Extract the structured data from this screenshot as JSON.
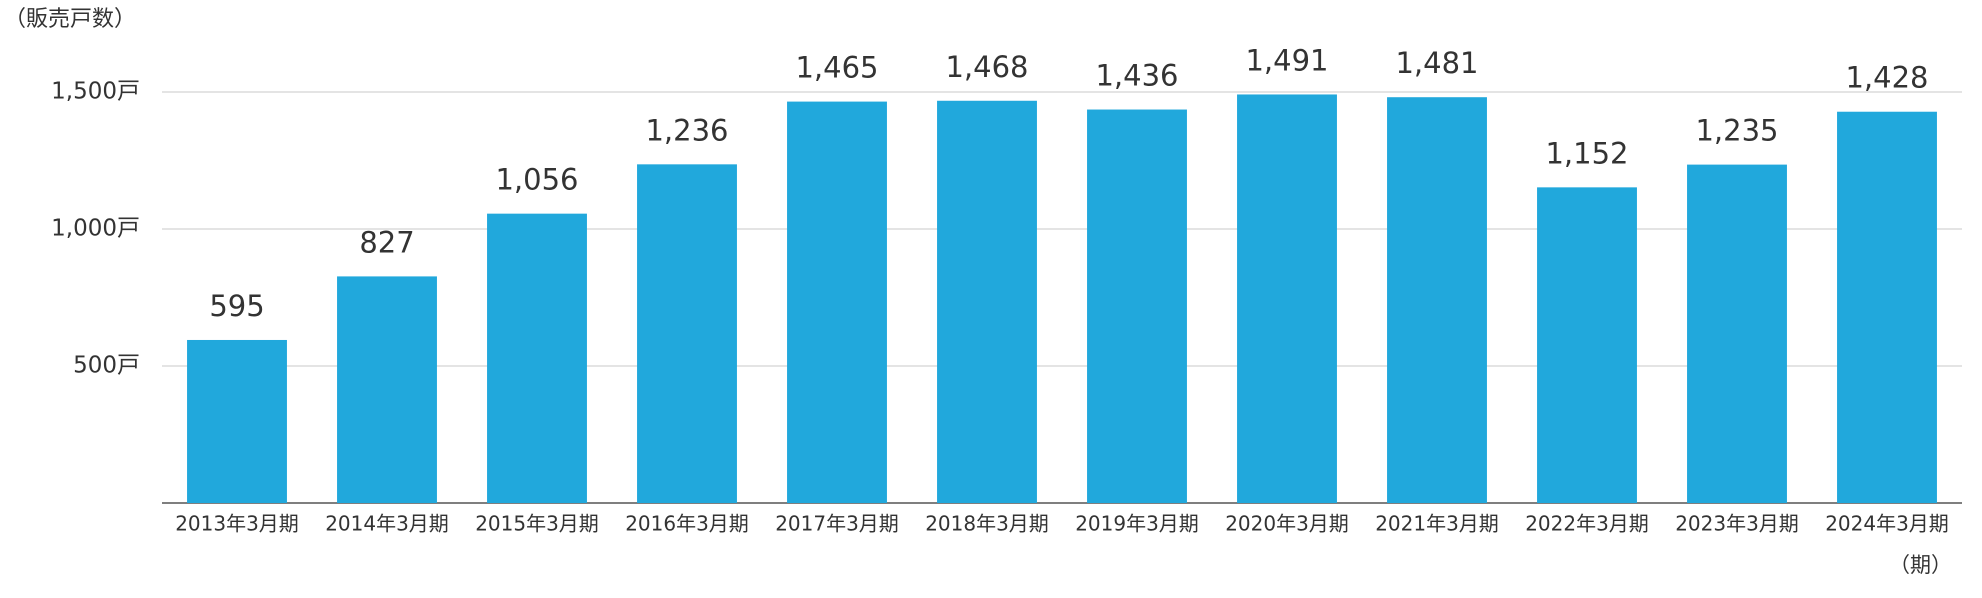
{
  "chart_data": {
    "type": "bar",
    "y_label": "（販売戸数）",
    "x_label": "（期）",
    "categories": [
      "2013年3月期",
      "2014年3月期",
      "2015年3月期",
      "2016年3月期",
      "2017年3月期",
      "2018年3月期",
      "2019年3月期",
      "2020年3月期",
      "2021年3月期",
      "2022年3月期",
      "2023年3月期",
      "2024年3月期"
    ],
    "values": [
      595,
      827,
      1056,
      1236,
      1465,
      1468,
      1436,
      1491,
      1481,
      1152,
      1235,
      1428
    ],
    "value_labels": [
      "595",
      "827",
      "1,056",
      "1,236",
      "1,465",
      "1,468",
      "1,436",
      "1,491",
      "1,481",
      "1,152",
      "1,235",
      "1,428"
    ],
    "color": "#21a8dc",
    "ylim": [
      0,
      1500
    ],
    "yticks": [
      {
        "value": 500,
        "label": "500戸"
      },
      {
        "value": 1000,
        "label": "1,000戸"
      },
      {
        "value": 1500,
        "label": "1,500戸"
      }
    ],
    "grid": true
  }
}
